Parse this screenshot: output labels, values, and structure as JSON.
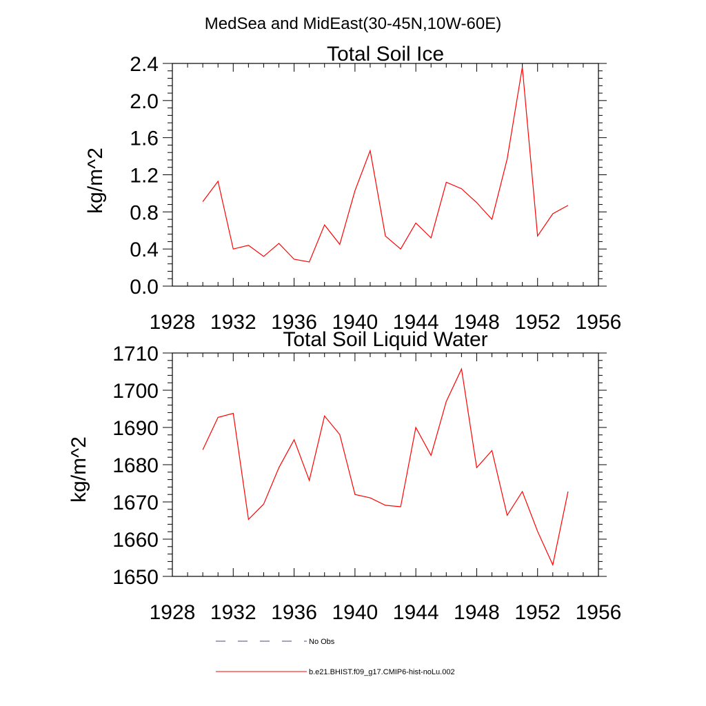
{
  "suptitle": "MedSea and MidEast(30-45N,10W-60E)",
  "legend": {
    "placement": "bottom",
    "entries": [
      {
        "label": "No Obs",
        "color": "#4a4a7a",
        "dash": "dashed"
      },
      {
        "label": "b.e21.BHIST.f09_g17.CMIP6-hist-noLu.002",
        "color": "#ff0000",
        "dash": "solid"
      }
    ]
  },
  "chart_data": [
    {
      "type": "line",
      "title": "Total Soil Ice",
      "xlabel": "",
      "ylabel": "kg/m^2",
      "xlim": [
        1928,
        1956
      ],
      "ylim": [
        0.0,
        2.4
      ],
      "xticks": [
        1928,
        1932,
        1936,
        1940,
        1944,
        1948,
        1952,
        1956
      ],
      "xtick_labels": [
        "1928",
        "1932",
        "1936",
        "1940",
        "1944",
        "1948",
        "1952",
        "1956"
      ],
      "yticks": [
        0.0,
        0.4,
        0.8,
        1.2,
        1.6,
        2.0,
        2.4
      ],
      "ytick_labels": [
        "0.0",
        "0.4",
        "0.8",
        "1.2",
        "1.6",
        "2.0",
        "2.4"
      ],
      "grid": false,
      "series": [
        {
          "color": "#ff0000",
          "x": [
            1930,
            1931,
            1932,
            1933,
            1934,
            1935,
            1936,
            1937,
            1938,
            1939,
            1940,
            1941,
            1942,
            1943,
            1944,
            1945,
            1946,
            1947,
            1948,
            1949,
            1950,
            1951,
            1952,
            1953,
            1954
          ],
          "values": [
            0.91,
            1.13,
            0.4,
            0.44,
            0.32,
            0.46,
            0.29,
            0.26,
            0.66,
            0.45,
            1.03,
            1.46,
            0.54,
            0.4,
            0.68,
            0.52,
            1.12,
            1.05,
            0.9,
            0.72,
            1.37,
            2.36,
            0.54,
            0.78,
            0.87
          ]
        }
      ]
    },
    {
      "type": "line",
      "title": "Total Soil Liquid Water",
      "xlabel": "",
      "ylabel": "kg/m^2",
      "xlim": [
        1928,
        1956
      ],
      "ylim": [
        1650,
        1710
      ],
      "xticks": [
        1928,
        1932,
        1936,
        1940,
        1944,
        1948,
        1952,
        1956
      ],
      "xtick_labels": [
        "1928",
        "1932",
        "1936",
        "1940",
        "1944",
        "1948",
        "1952",
        "1956"
      ],
      "yticks": [
        1650,
        1660,
        1670,
        1680,
        1690,
        1700,
        1710
      ],
      "ytick_labels": [
        "1650",
        "1660",
        "1670",
        "1680",
        "1690",
        "1700",
        "1710"
      ],
      "grid": false,
      "series": [
        {
          "color": "#ff0000",
          "x": [
            1930,
            1931,
            1932,
            1933,
            1934,
            1935,
            1936,
            1937,
            1938,
            1939,
            1940,
            1941,
            1942,
            1943,
            1944,
            1945,
            1946,
            1947,
            1948,
            1949,
            1950,
            1951,
            1952,
            1953,
            1954
          ],
          "values": [
            1684.0,
            1692.7,
            1693.8,
            1665.3,
            1669.4,
            1679.2,
            1686.7,
            1675.8,
            1693.1,
            1688.1,
            1672.0,
            1671.1,
            1669.1,
            1668.7,
            1690.0,
            1682.5,
            1697.0,
            1705.7,
            1679.2,
            1683.8,
            1666.4,
            1672.8,
            1662.1,
            1653.1,
            1672.8
          ]
        }
      ]
    }
  ]
}
